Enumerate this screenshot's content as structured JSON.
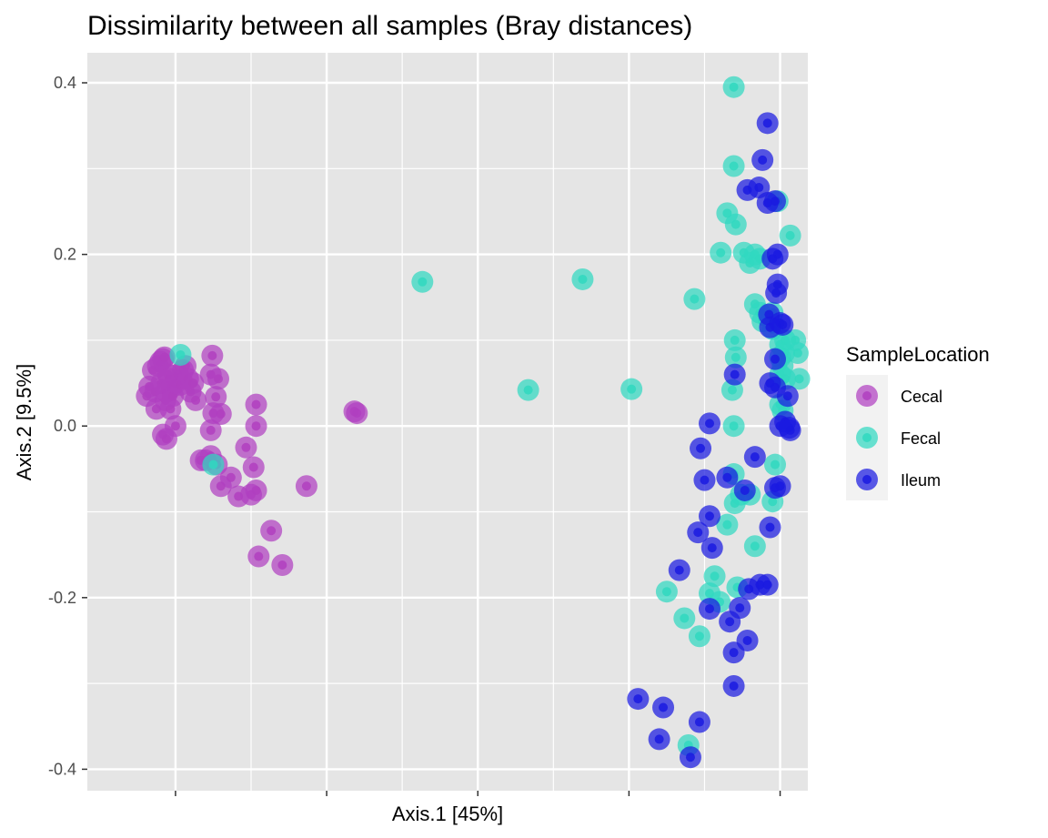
{
  "chart_data": {
    "type": "scatter",
    "title": "Dissimilarity between all samples (Bray distances)",
    "xlabel": "Axis.1   [45%]",
    "ylabel": "Axis.2   [9.5%]",
    "xlim": [
      -0.175,
      1.255
    ],
    "ylim": [
      -0.425,
      0.435
    ],
    "xticks_major": [
      0,
      0.3,
      0.6,
      0.9,
      1.2
    ],
    "xticks_minor": [
      0.15,
      0.45,
      0.75,
      1.05
    ],
    "xtick_labels_shown": false,
    "yticks": [
      -0.4,
      -0.2,
      0.0,
      0.2,
      0.4
    ],
    "ytick_labels": [
      "-0.4",
      "-0.2",
      "0.0",
      "0.2",
      "0.4"
    ],
    "yticks_minor": [
      -0.3,
      -0.1,
      0.1,
      0.3
    ],
    "grid": true,
    "legend": {
      "title": "SampleLocation",
      "position": "right"
    },
    "colors": {
      "Cecal": "#b040c0",
      "Fecal": "#30d8c0",
      "Ileum": "#1a1ae0",
      "panel": "#e5e5e5",
      "grid": "#ffffff"
    },
    "series": [
      {
        "name": "Cecal",
        "points": [
          [
            -0.057,
            0.035
          ],
          [
            -0.052,
            0.046
          ],
          [
            -0.045,
            0.065
          ],
          [
            -0.04,
            0.04
          ],
          [
            -0.038,
            0.02
          ],
          [
            -0.035,
            0.07
          ],
          [
            -0.03,
            0.075
          ],
          [
            -0.028,
            0.05
          ],
          [
            -0.025,
            0.078
          ],
          [
            -0.022,
            0.08
          ],
          [
            -0.02,
            0.03
          ],
          [
            -0.018,
            0.04
          ],
          [
            -0.015,
            0.06
          ],
          [
            -0.012,
            0.055
          ],
          [
            -0.01,
            0.02
          ],
          [
            -0.008,
            0.045
          ],
          [
            -0.005,
            0.035
          ],
          [
            0.0,
            0.05
          ],
          [
            0.005,
            0.06
          ],
          [
            0.01,
            0.048
          ],
          [
            0.015,
            0.065
          ],
          [
            0.02,
            0.07
          ],
          [
            0.025,
            0.055
          ],
          [
            0.03,
            0.04
          ],
          [
            0.035,
            0.05
          ],
          [
            0.04,
            0.03
          ],
          [
            -0.025,
            -0.01
          ],
          [
            -0.018,
            -0.015
          ],
          [
            0.0,
            0.0
          ],
          [
            0.07,
            0.06
          ],
          [
            0.073,
            0.082
          ],
          [
            0.075,
            0.015
          ],
          [
            0.08,
            0.034
          ],
          [
            0.085,
            0.055
          ],
          [
            0.09,
            0.014
          ],
          [
            0.07,
            -0.005
          ],
          [
            0.07,
            -0.035
          ],
          [
            0.06,
            -0.04
          ],
          [
            0.082,
            -0.045
          ],
          [
            0.09,
            -0.07
          ],
          [
            0.11,
            -0.06
          ],
          [
            0.125,
            -0.082
          ],
          [
            0.14,
            -0.025
          ],
          [
            0.15,
            -0.08
          ],
          [
            0.155,
            -0.048
          ],
          [
            0.16,
            -0.075
          ],
          [
            0.16,
            0.0
          ],
          [
            0.16,
            0.025
          ],
          [
            0.165,
            -0.152
          ],
          [
            0.19,
            -0.122
          ],
          [
            0.212,
            -0.162
          ],
          [
            0.26,
            -0.07
          ],
          [
            0.36,
            0.015
          ],
          [
            0.355,
            0.017
          ],
          [
            0.05,
            -0.04
          ]
        ]
      },
      {
        "name": "Fecal",
        "points": [
          [
            0.01,
            0.083
          ],
          [
            0.075,
            -0.045
          ],
          [
            0.49,
            0.168
          ],
          [
            0.7,
            0.042
          ],
          [
            0.808,
            0.171
          ],
          [
            0.905,
            0.043
          ],
          [
            1.108,
            0.395
          ],
          [
            1.108,
            0.303
          ],
          [
            1.112,
            0.235
          ],
          [
            1.095,
            0.248
          ],
          [
            1.03,
            0.148
          ],
          [
            1.082,
            0.202
          ],
          [
            1.128,
            0.202
          ],
          [
            1.14,
            0.19
          ],
          [
            1.15,
            0.2
          ],
          [
            1.16,
            0.195
          ],
          [
            1.15,
            0.142
          ],
          [
            1.16,
            0.132
          ],
          [
            1.165,
            0.122
          ],
          [
            1.185,
            0.132
          ],
          [
            1.185,
            0.113
          ],
          [
            1.2,
            0.095
          ],
          [
            1.2,
            0.08
          ],
          [
            1.208,
            0.085
          ],
          [
            1.21,
            0.1
          ],
          [
            1.205,
            0.07
          ],
          [
            1.2,
            0.06
          ],
          [
            1.21,
            0.055
          ],
          [
            1.22,
            0.222
          ],
          [
            1.195,
            0.262
          ],
          [
            1.11,
            0.1
          ],
          [
            1.112,
            0.08
          ],
          [
            1.105,
            0.042
          ],
          [
            1.108,
            0.0
          ],
          [
            1.108,
            -0.056
          ],
          [
            1.11,
            -0.09
          ],
          [
            1.122,
            -0.08
          ],
          [
            1.14,
            -0.08
          ],
          [
            1.15,
            -0.14
          ],
          [
            1.185,
            -0.088
          ],
          [
            1.19,
            -0.045
          ],
          [
            1.2,
            0.025
          ],
          [
            1.205,
            0.018
          ],
          [
            1.07,
            -0.175
          ],
          [
            1.04,
            -0.245
          ],
          [
            1.01,
            -0.224
          ],
          [
            1.06,
            -0.195
          ],
          [
            1.08,
            -0.205
          ],
          [
            1.115,
            -0.188
          ],
          [
            1.095,
            -0.115
          ],
          [
            0.975,
            -0.193
          ],
          [
            1.018,
            -0.372
          ],
          [
            1.23,
            0.1
          ],
          [
            1.235,
            0.085
          ],
          [
            1.238,
            0.055
          ]
        ]
      },
      {
        "name": "Ileum",
        "points": [
          [
            1.175,
            0.353
          ],
          [
            1.165,
            0.31
          ],
          [
            1.135,
            0.275
          ],
          [
            1.158,
            0.278
          ],
          [
            1.175,
            0.26
          ],
          [
            1.19,
            0.262
          ],
          [
            1.195,
            0.2
          ],
          [
            1.185,
            0.195
          ],
          [
            1.195,
            0.165
          ],
          [
            1.192,
            0.155
          ],
          [
            1.178,
            0.13
          ],
          [
            1.18,
            0.115
          ],
          [
            1.2,
            0.12
          ],
          [
            1.205,
            0.118
          ],
          [
            1.19,
            0.078
          ],
          [
            1.18,
            0.05
          ],
          [
            1.19,
            0.045
          ],
          [
            1.215,
            0.035
          ],
          [
            1.2,
            0.0
          ],
          [
            1.21,
            0.005
          ],
          [
            1.218,
            -0.002
          ],
          [
            1.15,
            -0.036
          ],
          [
            1.19,
            -0.072
          ],
          [
            1.2,
            -0.07
          ],
          [
            1.13,
            -0.075
          ],
          [
            1.095,
            -0.06
          ],
          [
            1.06,
            0.003
          ],
          [
            1.042,
            -0.026
          ],
          [
            1.05,
            -0.063
          ],
          [
            1.06,
            -0.105
          ],
          [
            1.065,
            -0.142
          ],
          [
            1.037,
            -0.124
          ],
          [
            1.0,
            -0.168
          ],
          [
            1.06,
            -0.213
          ],
          [
            1.1,
            -0.228
          ],
          [
            1.12,
            -0.212
          ],
          [
            1.138,
            -0.19
          ],
          [
            1.16,
            -0.185
          ],
          [
            1.175,
            -0.185
          ],
          [
            1.135,
            -0.25
          ],
          [
            1.108,
            -0.264
          ],
          [
            1.108,
            -0.303
          ],
          [
            0.918,
            -0.318
          ],
          [
            0.968,
            -0.328
          ],
          [
            0.96,
            -0.365
          ],
          [
            1.04,
            -0.345
          ],
          [
            1.022,
            -0.386
          ],
          [
            1.18,
            -0.118
          ],
          [
            1.11,
            0.06
          ],
          [
            1.22,
            -0.005
          ]
        ]
      }
    ]
  }
}
